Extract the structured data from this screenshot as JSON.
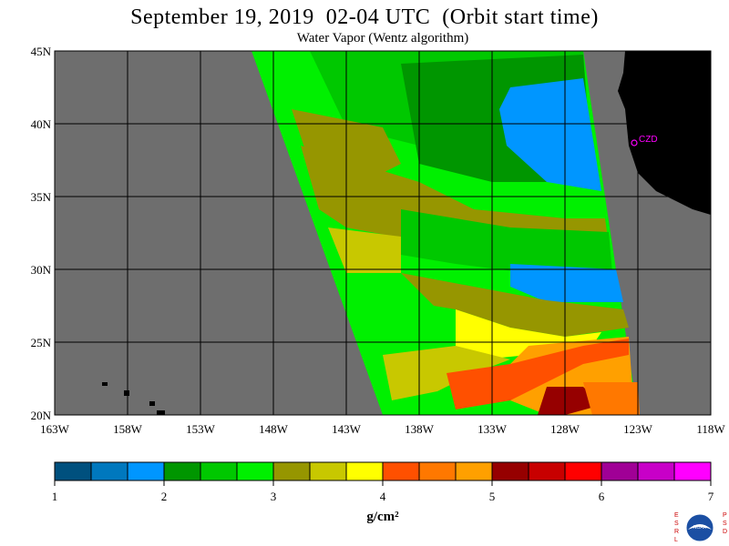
{
  "header": {
    "title": "September 19, 2019  02-04 UTC  (Orbit start time)",
    "subtitle": "Water Vapor (Wentz algorithm)"
  },
  "map": {
    "lon_labels": [
      "163W",
      "158W",
      "153W",
      "148W",
      "143W",
      "138W",
      "133W",
      "128W",
      "123W",
      "118W"
    ],
    "lat_labels": [
      "45N",
      "40N",
      "35N",
      "30N",
      "25N",
      "20N"
    ],
    "station_label": "CZD",
    "colors": {
      "land_nodata": "#6e6e6e",
      "us_coast_land": "#000000",
      "station": "#ff00ff"
    }
  },
  "colorbar": {
    "ticks": [
      "1",
      "2",
      "3",
      "4",
      "5",
      "6",
      "7"
    ],
    "unit": "g/cm²",
    "colors": [
      "#00507e",
      "#0078be",
      "#0096ff",
      "#009600",
      "#00c800",
      "#00f000",
      "#969600",
      "#c8c800",
      "#ffff00",
      "#ff5000",
      "#ff7800",
      "#ffa000",
      "#960000",
      "#c80000",
      "#ff0000",
      "#a00096",
      "#c800c8",
      "#ff00ff"
    ]
  },
  "logo": {
    "left_letters": "ESRL",
    "right_letters": "PSD",
    "emblem": "NOAA"
  }
}
